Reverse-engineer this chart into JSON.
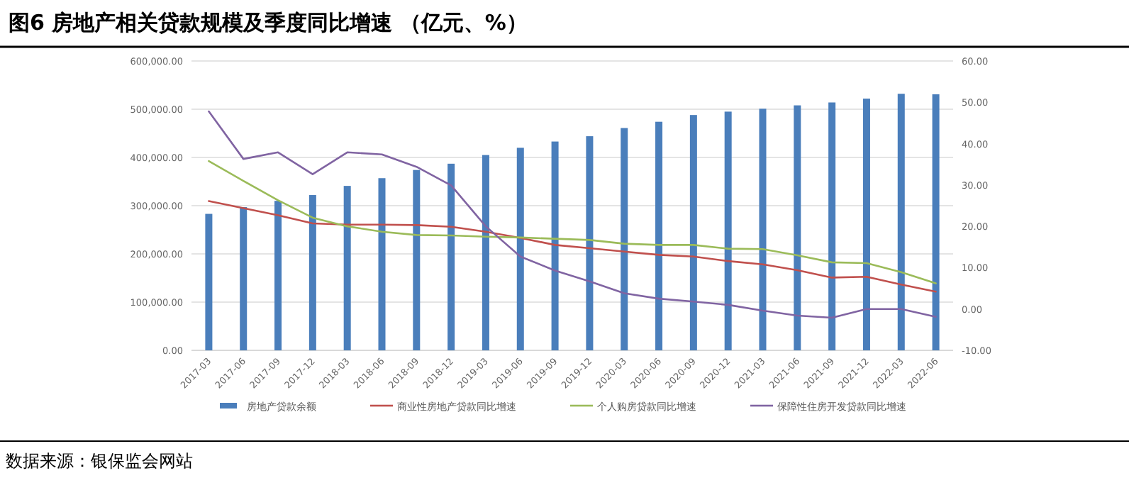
{
  "chart_data": {
    "type": "bar",
    "title": "图6 房地产相关贷款规模及季度同比增速 （亿元、%）",
    "categories": [
      "2017-03",
      "2017-06",
      "2017-09",
      "2017-12",
      "2018-03",
      "2018-06",
      "2018-09",
      "2018-12",
      "2019-03",
      "2019-06",
      "2019-09",
      "2019-12",
      "2020-03",
      "2020-06",
      "2020-09",
      "2020-12",
      "2021-03",
      "2021-06",
      "2021-09",
      "2021-12",
      "2022-03",
      "2022-06"
    ],
    "series": [
      {
        "name": "房地产贷款余额",
        "color": "#4a7ebb",
        "values": [
          283000,
          297000,
          310000,
          322000,
          341000,
          357000,
          374000,
          387000,
          405000,
          420000,
          433000,
          444000,
          461000,
          474000,
          488000,
          495000,
          501000,
          508000,
          514000,
          522000,
          532000,
          531000
        ]
      },
      {
        "name": "商业性房地产贷款同比增速",
        "type": "line",
        "axis": "y2",
        "color": "#c0504d",
        "values": [
          26.1,
          24.4,
          22.7,
          20.7,
          20.4,
          20.4,
          20.3,
          19.9,
          18.7,
          17.2,
          15.5,
          14.7,
          13.9,
          13.1,
          12.7,
          11.6,
          10.8,
          9.4,
          7.6,
          7.8,
          5.9,
          4.2
        ]
      },
      {
        "name": "个人购房贷款同比增速",
        "type": "line",
        "axis": "y2",
        "color": "#9bbb59",
        "values": [
          35.8,
          31.0,
          26.3,
          22.1,
          20.0,
          18.7,
          17.9,
          17.8,
          17.5,
          17.3,
          17.0,
          16.7,
          15.8,
          15.5,
          15.5,
          14.6,
          14.5,
          13.0,
          11.3,
          11.1,
          8.9,
          6.2
        ]
      },
      {
        "name": "保障性住房开发贷款同比增速",
        "type": "line",
        "axis": "y2",
        "color": "#8064a2",
        "values": [
          47.8,
          36.3,
          37.9,
          32.6,
          37.9,
          37.4,
          34.4,
          29.9,
          20.0,
          12.7,
          9.3,
          6.7,
          3.8,
          2.5,
          1.8,
          1.0,
          -0.4,
          -1.6,
          -2.1,
          0.0,
          0.0,
          -1.9
        ]
      }
    ],
    "ylim": [
      0,
      600000
    ],
    "yticks": [
      {
        "value": 0,
        "label": "0.00"
      },
      {
        "value": 100000,
        "label": "100,000.00"
      },
      {
        "value": 200000,
        "label": "200,000.00"
      },
      {
        "value": 300000,
        "label": "300,000.00"
      },
      {
        "value": 400000,
        "label": "400,000.00"
      },
      {
        "value": 500000,
        "label": "500,000.00"
      },
      {
        "value": 600000,
        "label": "600,000.00"
      }
    ],
    "y2lim": [
      -10,
      60
    ],
    "y2ticks": [
      {
        "value": -10,
        "label": "-10.00"
      },
      {
        "value": 0,
        "label": "0.00"
      },
      {
        "value": 10,
        "label": "10.00"
      },
      {
        "value": 20,
        "label": "20.00"
      },
      {
        "value": 30,
        "label": "30.00"
      },
      {
        "value": 40,
        "label": "40.00"
      },
      {
        "value": 50,
        "label": "50.00"
      },
      {
        "value": 60,
        "label": "60.00"
      }
    ],
    "grid": "y",
    "legend": "bottom",
    "marker": "none",
    "line_style": "solid",
    "annotations": [
      "数据来源：银保监会网站"
    ]
  }
}
